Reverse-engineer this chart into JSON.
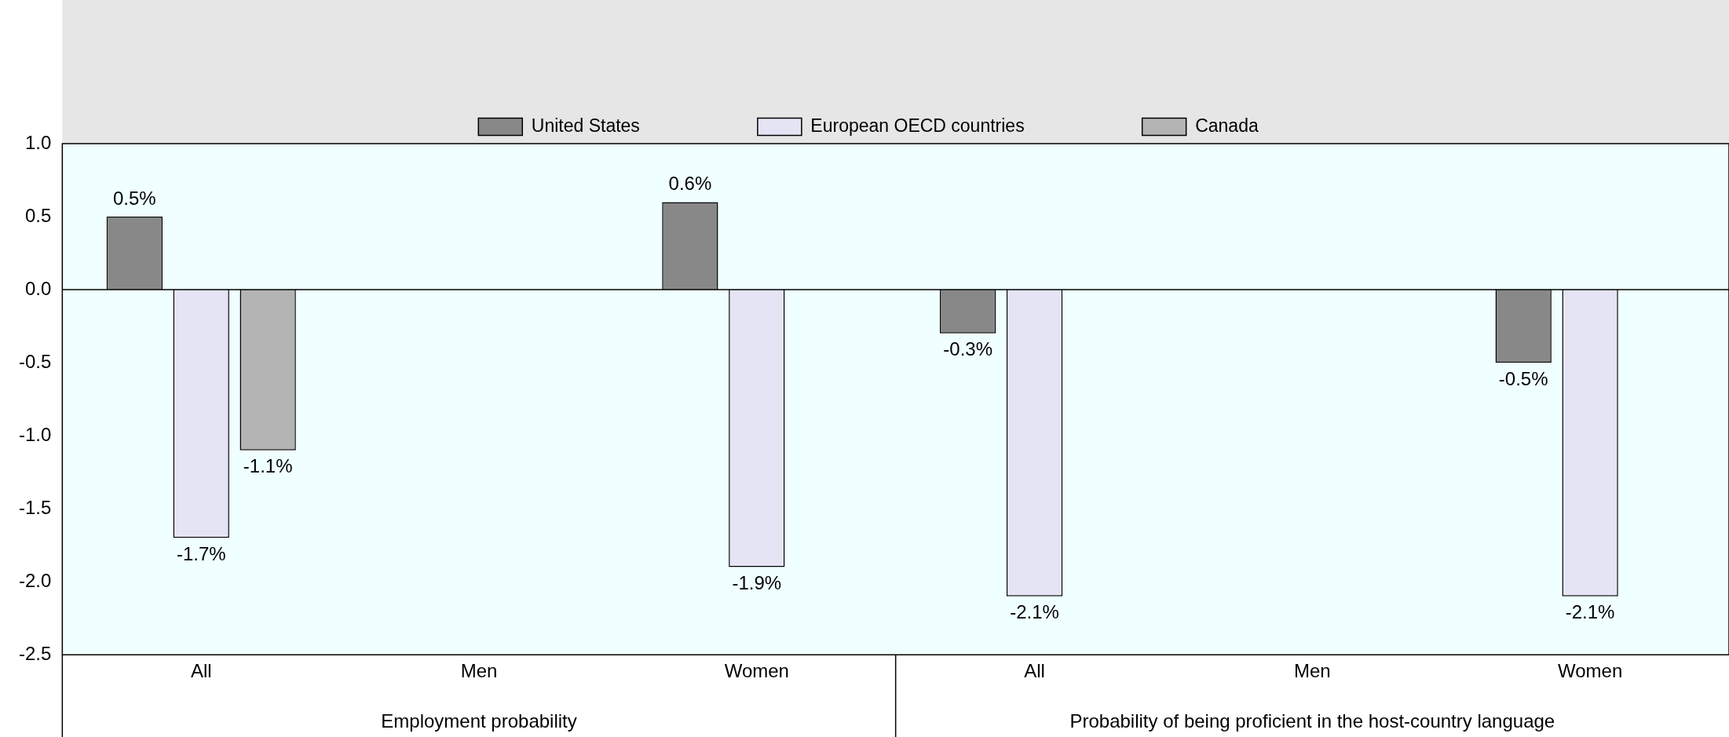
{
  "chart_data": {
    "type": "bar",
    "categories": [
      "All",
      "Men",
      "Women",
      "All",
      "Men",
      "Women"
    ],
    "series": [
      {
        "name": "United States",
        "color": "#888888",
        "values": [
          0.5,
          null,
          0.6,
          -0.3,
          null,
          -0.5
        ],
        "value_labels": [
          "0.5%",
          null,
          "0.6%",
          "-0.3%",
          null,
          "-0.5%"
        ]
      },
      {
        "name": "European OECD countries",
        "color": "#e4e4f4",
        "values": [
          -1.7,
          null,
          -1.9,
          -2.1,
          null,
          -2.1
        ],
        "value_labels": [
          "-1.7%",
          null,
          "-1.9%",
          "-2.1%",
          null,
          "-2.1%"
        ]
      },
      {
        "name": "Canada",
        "color": "#b4b4b4",
        "values": [
          -1.1,
          null,
          null,
          null,
          null,
          null
        ],
        "value_labels": [
          "-1.1%",
          null,
          null,
          null,
          null,
          null
        ]
      }
    ],
    "ylim": [
      -2.5,
      1
    ],
    "yticks": [
      {
        "value": -2.5,
        "label": "-2.5"
      },
      {
        "value": -2,
        "label": "-2.0"
      },
      {
        "value": -1.5,
        "label": "-1.5"
      },
      {
        "value": -1,
        "label": "-1.0"
      },
      {
        "value": -0.5,
        "label": "-0.5"
      },
      {
        "value": 0,
        "label": "0.0"
      },
      {
        "value": 0.5,
        "label": "0.5"
      },
      {
        "value": 1,
        "label": "1.0"
      }
    ],
    "annotations": [
      "Employment probability",
      "Probability of being proficient in the host-country language"
    ],
    "legend": "top"
  }
}
